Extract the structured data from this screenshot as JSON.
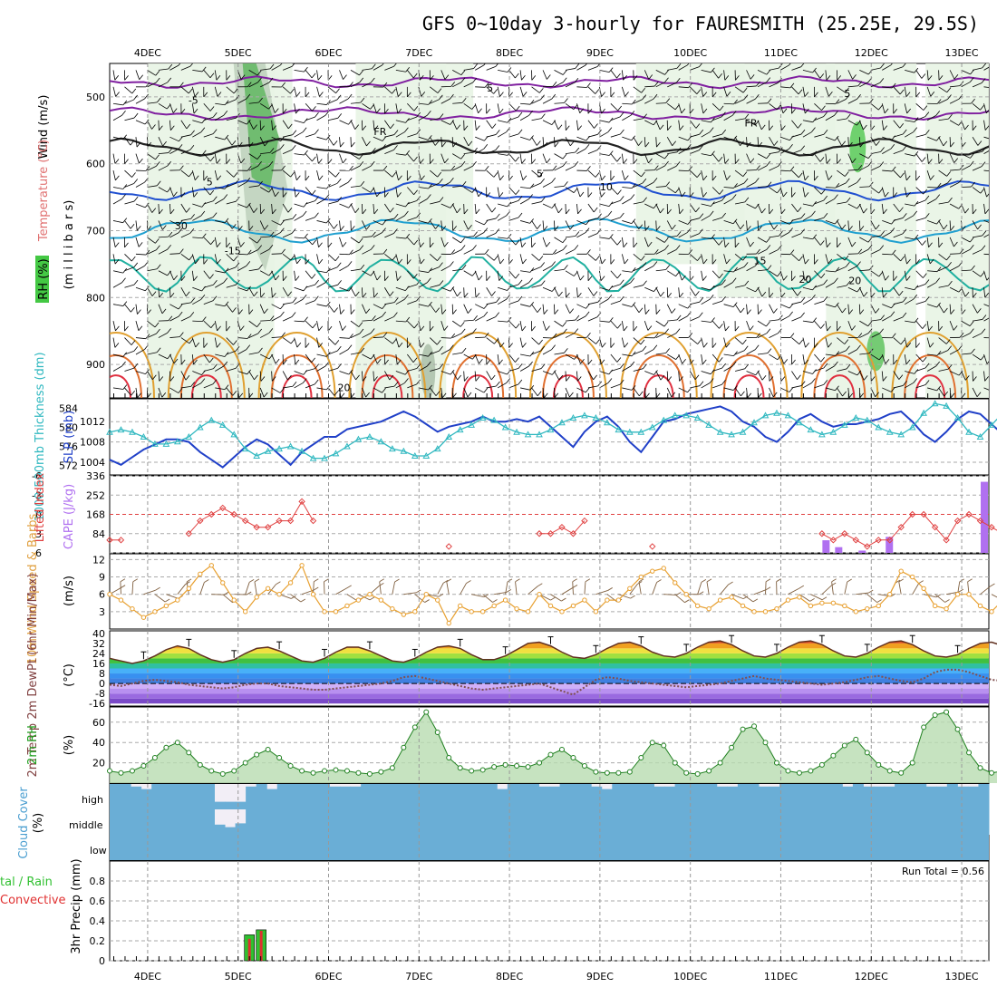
{
  "title": "GFS 0~10day 3-hourly for FAURESMITH (25.25E, 29.5S)",
  "date_labels": [
    "4DEC",
    "5DEC",
    "6DEC",
    "7DEC",
    "8DEC",
    "9DEC",
    "10DEC",
    "11DEC",
    "12DEC",
    "13DEC"
  ],
  "panels": {
    "upper": {
      "ylabel_wind": "Wind (m/s)",
      "ylabel_temp": "Temperature (°C)",
      "ylabel_rh": "RH (%)",
      "ylabel_mb": "(m i l l i b a r s)",
      "pressure_ticks": [
        "500",
        "600",
        "700",
        "800",
        "900"
      ],
      "pressure_range": [
        450,
        950
      ],
      "contour_labels": [
        "-5",
        "5",
        "5",
        "FR",
        "FR",
        "5",
        "5",
        "10",
        "-15",
        "15",
        "20",
        "20",
        "30",
        "20"
      ]
    },
    "slp": {
      "ylabel_left": "1000-500mb Thickness (dm)",
      "ylabel_right": "SLP (mb)",
      "thickness_ticks": [
        "572",
        "576",
        "580",
        "584"
      ],
      "slp_ticks": [
        "1004",
        "1008",
        "1012"
      ]
    },
    "cape": {
      "ylabel_left": "Lifted Index",
      "ylabel_right": "CAPE (J/kg)",
      "li_ticks": [
        "-6",
        "-3",
        "0",
        "3",
        "6"
      ],
      "cape_ticks": [
        "336",
        "252",
        "168",
        "84"
      ]
    },
    "wind10m": {
      "ylabel": "10m Wind Speed & Barbs",
      "unit": "(m/s)",
      "ticks": [
        "12",
        "9",
        "6",
        "3"
      ]
    },
    "temp2m": {
      "ylabel": "2m Temp 2m DewPt (6hr Min/Max)",
      "unit": "(°C)",
      "ticks": [
        "40",
        "32",
        "24",
        "16",
        "8",
        "0",
        "-8",
        "-16"
      ]
    },
    "rh2m": {
      "ylabel": "2m RH",
      "unit": "(%)",
      "ticks": [
        "60",
        "40",
        "20"
      ]
    },
    "cloud": {
      "ylabel": "Cloud Cover",
      "unit": "(%)",
      "levels": [
        "high",
        "middle",
        "low"
      ]
    },
    "precip": {
      "ylabel": "3hr Precip (mm)",
      "legend_total": "tal / Rain",
      "legend_convective": "Convective",
      "run_total": "Run Total = 0.56",
      "ticks": [
        "0.8",
        "0.6",
        "0.4",
        "0.2",
        "0"
      ]
    }
  },
  "chart_data": {
    "type": "meteogram",
    "title": "GFS 0~10day 3-hourly for FAURESMITH (25.25E, 29.5S)",
    "x_start_day": 3.58,
    "x_end_day": 13.3,
    "colors": {
      "slp": "#2040c8",
      "thickness": "#30b8c0",
      "lifted_index": "#e04040",
      "cape": "#b070f0",
      "wind_speed": "#e8a030",
      "rh2m": "#208020",
      "rh2m_fill": "#b8dcb0",
      "cloud": "#6aaed6",
      "precip_total": "#30c030",
      "precip_conv": "#e03030"
    },
    "slp_mb": [
      1004.5,
      1003.5,
      1005,
      1006.5,
      1007.5,
      1008.5,
      1008.5,
      1008,
      1006,
      1004.5,
      1003,
      1005,
      1007,
      1008.5,
      1007.5,
      1005.5,
      1003.5,
      1006,
      1007.5,
      1009,
      1009,
      1010.5,
      1011,
      1011.5,
      1012,
      1013,
      1014,
      1013,
      1011.5,
      1010,
      1011,
      1011.5,
      1012,
      1013,
      1012,
      1012,
      1012.5,
      1012,
      1013,
      1011,
      1009,
      1007,
      1010,
      1012,
      1013,
      1011,
      1008,
      1006,
      1009,
      1012,
      1012.5,
      1013.5,
      1014,
      1014.5,
      1015,
      1014,
      1012,
      1011,
      1009,
      1008,
      1010,
      1012.5,
      1013.5,
      1012,
      1011,
      1011.5,
      1011.5,
      1012,
      1012.5,
      1013.5,
      1014,
      1012,
      1009.5,
      1008,
      1010,
      1012.5,
      1014,
      1013.5,
      1011.5,
      1009.5,
      1008,
      1010.5,
      1013,
      1014.5
    ],
    "thickness_dm": [
      579,
      579.5,
      579,
      578,
      576.5,
      576.5,
      577,
      578,
      580,
      581.5,
      580.5,
      578.5,
      575.5,
      574,
      575,
      575.5,
      576,
      575,
      573.5,
      573.5,
      574.5,
      576,
      577.5,
      578,
      577,
      575.5,
      575,
      574,
      574,
      575.5,
      578,
      579.5,
      580.5,
      582,
      581.5,
      580,
      579,
      578.5,
      578.5,
      579.5,
      581,
      582,
      582.5,
      582,
      581,
      579.5,
      579,
      579,
      580,
      581.5,
      582.5,
      582.5,
      582,
      580.5,
      579,
      578.5,
      579,
      581,
      582.5,
      583,
      582.5,
      581,
      579.5,
      578.5,
      579,
      580.5,
      582,
      581.5,
      580,
      579,
      578.5,
      580,
      583,
      585,
      584.5,
      582,
      579,
      578,
      580.5,
      583,
      583.5,
      581,
      578.5,
      579,
      581,
      583
    ],
    "lifted_index": [
      4,
      4,
      null,
      null,
      null,
      null,
      null,
      3,
      1,
      0,
      -1,
      0,
      1,
      2,
      2,
      1,
      1,
      -2,
      1,
      null,
      null,
      null,
      null,
      null,
      null,
      null,
      null,
      null,
      null,
      null,
      5,
      null,
      null,
      null,
      null,
      null,
      null,
      null,
      3,
      3,
      2,
      3,
      1,
      null,
      null,
      null,
      null,
      null,
      5,
      null,
      null,
      null,
      null,
      null,
      null,
      null,
      null,
      null,
      null,
      null,
      null,
      null,
      null,
      3,
      4,
      3,
      4,
      5,
      4,
      4,
      2,
      0,
      0,
      2,
      4,
      1,
      0,
      1,
      2,
      3,
      4,
      4,
      null,
      -1
    ],
    "cape_bars": [
      {
        "x_day": 11.5,
        "value": 55
      },
      {
        "x_day": 11.64,
        "value": 25
      },
      {
        "x_day": 11.9,
        "value": 10
      },
      {
        "x_day": 12.2,
        "value": 70
      },
      {
        "x_day": 13.25,
        "value": 310
      }
    ],
    "wind10m_ms": [
      6,
      5,
      3.5,
      2,
      3,
      4,
      5,
      7,
      9.5,
      11,
      8,
      5,
      3,
      5.5,
      7,
      6,
      8,
      11,
      6,
      3,
      3,
      4,
      5,
      6,
      5,
      3.5,
      2.5,
      3,
      6,
      5,
      1,
      4,
      3,
      3,
      4,
      5,
      3.5,
      3,
      6,
      4,
      3,
      4,
      5,
      3,
      5,
      5,
      7,
      9,
      10,
      10.5,
      8,
      6,
      4,
      3.5,
      5,
      5.5,
      4,
      3,
      3,
      3.5,
      5,
      5.5,
      4,
      4.5,
      4.5,
      4,
      3,
      3.5,
      4,
      6,
      10,
      9,
      7,
      4,
      3.5,
      6,
      6,
      4,
      3,
      5,
      4,
      6,
      5,
      5
    ],
    "temp2m_c": [
      20,
      18,
      16,
      18,
      22,
      27,
      30,
      28,
      23,
      19,
      17,
      19,
      24,
      28,
      29,
      26,
      22,
      18,
      17,
      20,
      25,
      29,
      29,
      26,
      22,
      18,
      17,
      20,
      25,
      29,
      30,
      28,
      23,
      19,
      19,
      22,
      27,
      32,
      33,
      30,
      25,
      21,
      20,
      23,
      28,
      32,
      33,
      30,
      25,
      22,
      21,
      24,
      29,
      33,
      34,
      31,
      26,
      22,
      21,
      24,
      29,
      33,
      34,
      31,
      26,
      22,
      21,
      24,
      29,
      33,
      34,
      31,
      26,
      22,
      21,
      23,
      28,
      32,
      33,
      30,
      25,
      21,
      20,
      24
    ],
    "dewpt2m_c": [
      -1,
      -2,
      0,
      2,
      3,
      2,
      1,
      -1,
      -2,
      -3,
      -4,
      -3,
      -1,
      0,
      0,
      -2,
      -3,
      -4,
      -5,
      -5,
      -4,
      -3,
      -2,
      -1,
      0,
      2,
      5,
      6,
      4,
      2,
      0,
      -2,
      -4,
      -5,
      -4,
      -3,
      -2,
      -1,
      0,
      -3,
      -6,
      -9,
      -3,
      3,
      5,
      4,
      2,
      1,
      0,
      -1,
      -2,
      -3,
      -2,
      -1,
      0,
      2,
      4,
      6,
      4,
      3,
      2,
      1,
      0,
      -1,
      0,
      1,
      3,
      5,
      6,
      4,
      2,
      1,
      4,
      9,
      11,
      11,
      9,
      6,
      3,
      2,
      4,
      7,
      9,
      11
    ],
    "rh2m_pct": [
      12,
      10,
      12,
      17,
      25,
      35,
      40,
      30,
      18,
      12,
      9,
      12,
      20,
      28,
      33,
      25,
      17,
      12,
      10,
      12,
      13,
      12,
      10,
      9,
      11,
      15,
      35,
      55,
      70,
      50,
      25,
      15,
      12,
      13,
      16,
      18,
      17,
      16,
      20,
      28,
      33,
      25,
      17,
      11,
      10,
      10,
      11,
      25,
      40,
      37,
      20,
      10,
      9,
      12,
      20,
      35,
      53,
      56,
      40,
      20,
      12,
      10,
      12,
      18,
      27,
      37,
      43,
      30,
      18,
      12,
      10,
      20,
      55,
      67,
      70,
      53,
      30,
      15,
      10,
      12,
      25,
      40,
      50,
      50
    ],
    "cloud_high_frac": [
      1,
      1,
      0.9,
      0.8,
      1,
      1,
      1,
      1,
      1,
      1,
      0.3,
      0.3,
      0.3,
      0.9,
      1,
      0.8,
      1,
      1,
      1,
      1,
      1,
      0.9,
      0.9,
      0.9,
      1,
      1,
      1,
      1,
      1,
      1,
      1,
      1,
      1,
      1,
      1,
      1,
      1,
      0.8,
      1,
      1,
      1,
      0.9,
      0.9,
      1,
      1,
      1,
      0.9,
      0.8,
      1,
      1,
      1,
      1,
      0.9,
      0.9,
      1,
      1,
      1,
      1,
      0.9,
      0.9,
      1,
      1,
      0.9,
      0.9,
      1,
      1,
      1,
      1,
      1,
      1,
      0.9,
      1,
      0.9,
      0.9,
      0.9,
      1,
      1,
      1,
      0.9,
      0.9,
      1,
      0.9,
      0.9,
      1
    ],
    "cloud_mid_frac": [
      1,
      1,
      1,
      1,
      1,
      1,
      1,
      1,
      1,
      1,
      0.4,
      0.3,
      0.45,
      1,
      1,
      1,
      1,
      1,
      1,
      1,
      1,
      1,
      1,
      1,
      1,
      1,
      1,
      1,
      1,
      1,
      1,
      1,
      1,
      1,
      1,
      1,
      1,
      1,
      1,
      1,
      1,
      1,
      1,
      1,
      1,
      1,
      1,
      1,
      1,
      1,
      1,
      1,
      1,
      1,
      1,
      1,
      1,
      1,
      1,
      1,
      1,
      1,
      1,
      1,
      1,
      1,
      1,
      1,
      1,
      1,
      1,
      1,
      1,
      1,
      1,
      1,
      1,
      1,
      1,
      1,
      1,
      1,
      1,
      1
    ],
    "precip_mm": [
      {
        "x_day": 5.12,
        "total": 0.26,
        "convective": 0.22
      },
      {
        "x_day": 5.25,
        "total": 0.31,
        "convective": 0.3
      }
    ],
    "precip_run_total": 0.56
  }
}
